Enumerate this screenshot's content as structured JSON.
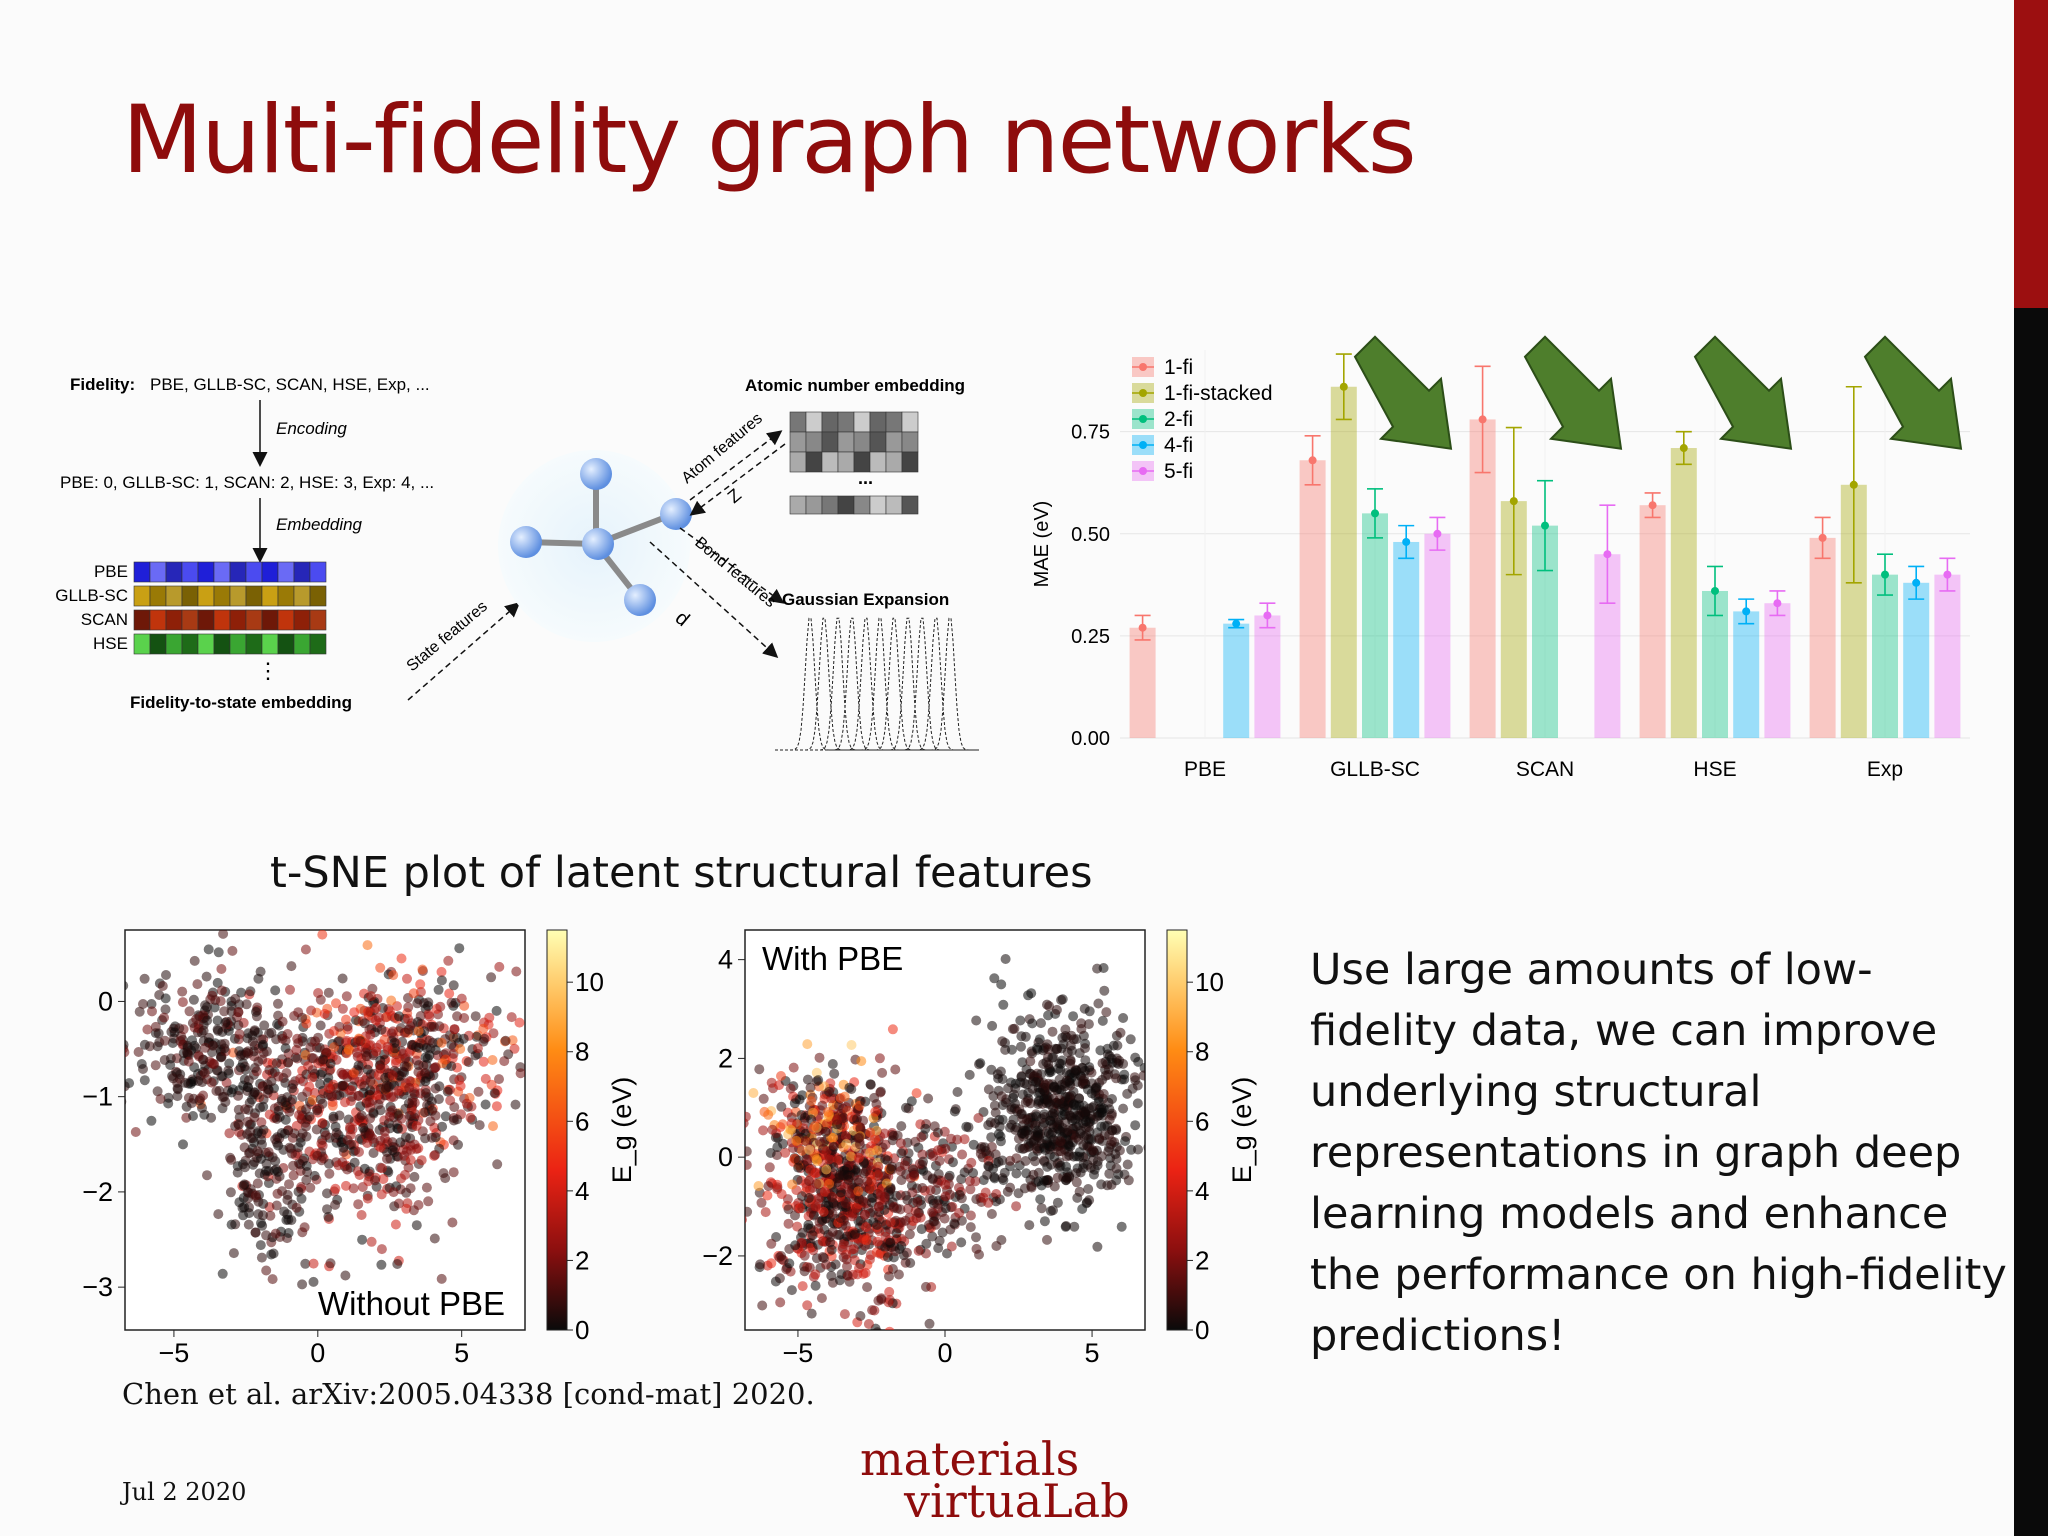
{
  "slide": {
    "title": "Multi-fidelity graph networks",
    "tsne_title": "t-SNE plot of latent structural features",
    "description": "Use large amounts of low-fidelity data, we can improve underlying structural representations in graph deep learning models and enhance the performance on high-fidelity predictions!",
    "citation": "Chen et al. arXiv:2005.04338 [cond-mat] 2020.",
    "date": "Jul 2 2020",
    "logo_line1": "materials",
    "logo_line2": "virtuaLab",
    "accent_color": "#8e0c0c"
  },
  "diagram": {
    "fidelity_label": "Fidelity:",
    "fidelity_list": "PBE, GLLB-SC, SCAN, HSE, Exp, ...",
    "encoding": "Encoding",
    "encoded": "PBE: 0, GLLB-SC: 1, SCAN: 2, HSE: 3, Exp: 4, ...",
    "embedding": "Embedding",
    "rows": [
      "PBE",
      "GLLB-SC",
      "SCAN",
      "HSE"
    ],
    "dots": "⋮",
    "fidelity_to_state": "Fidelity-to-state embedding",
    "state_features": "State features",
    "atom_features": "Atom features",
    "bond_features": "Bond features",
    "z": "Z",
    "d": "d",
    "atomic_embedding": "Atomic number embedding",
    "ellipsis": "...",
    "gaussian": "Gaussian Expansion"
  },
  "chart_data": [
    {
      "type": "bar",
      "ylabel": "MAE (eV)",
      "xlabel": "",
      "ylim": [
        0,
        0.95
      ],
      "yticks": [
        "0.00",
        "0.25",
        "0.50",
        "0.75"
      ],
      "categories": [
        "PBE",
        "GLLB-SC",
        "SCAN",
        "HSE",
        "Exp"
      ],
      "legend_position": "top-left",
      "series": [
        {
          "name": "1-fi",
          "color": "#f8766d",
          "values": [
            0.27,
            0.68,
            0.78,
            0.57,
            0.49
          ],
          "err": [
            0.03,
            0.06,
            0.13,
            0.03,
            0.05
          ]
        },
        {
          "name": "1-fi-stacked",
          "color": "#a3a500",
          "values": [
            null,
            0.86,
            0.58,
            0.71,
            0.62
          ],
          "err": [
            0,
            0.08,
            0.18,
            0.04,
            0.24
          ]
        },
        {
          "name": "2-fi",
          "color": "#00bf7d",
          "values": [
            null,
            0.55,
            0.52,
            0.36,
            0.4
          ],
          "err": [
            0,
            0.06,
            0.11,
            0.06,
            0.05
          ]
        },
        {
          "name": "4-fi",
          "color": "#00b0f6",
          "values": [
            0.28,
            0.48,
            null,
            0.31,
            0.38
          ],
          "err": [
            0.01,
            0.04,
            0,
            0.03,
            0.04
          ]
        },
        {
          "name": "5-fi",
          "color": "#e76bf3",
          "values": [
            0.3,
            0.5,
            0.45,
            0.33,
            0.4
          ],
          "err": [
            0.03,
            0.04,
            0.12,
            0.03,
            0.04
          ]
        }
      ]
    },
    {
      "type": "scatter",
      "label": "Without PBE",
      "xticks": [
        -5,
        0,
        5
      ],
      "yticks": [
        0,
        -1,
        -2,
        -3
      ],
      "xlim": [
        -6.7,
        7.2
      ],
      "ylim": [
        -3.45,
        0.75
      ],
      "colorbar_label": "E_g (eV)",
      "colorbar_ticks": [
        0,
        2,
        4,
        6,
        8,
        10
      ],
      "clusters": [
        {
          "cx": 2.5,
          "cy": -0.6,
          "sx": 2.3,
          "sy": 0.45,
          "n": 520,
          "emax": 7
        },
        {
          "cx": 1.3,
          "cy": -1.4,
          "sx": 1.8,
          "sy": 0.55,
          "n": 360,
          "emax": 4
        },
        {
          "cx": -3.6,
          "cy": -0.5,
          "sx": 1.4,
          "sy": 0.45,
          "n": 300,
          "emax": 2
        },
        {
          "cx": -1.8,
          "cy": -1.8,
          "sx": 0.8,
          "sy": 0.5,
          "n": 140,
          "emax": 1.5
        }
      ]
    },
    {
      "type": "scatter",
      "label": "With PBE",
      "xticks": [
        -5,
        0,
        5
      ],
      "yticks": [
        4,
        2,
        0,
        -2
      ],
      "xlim": [
        -6.8,
        6.8
      ],
      "ylim": [
        -3.5,
        4.6
      ],
      "colorbar_label": "E_g (eV)",
      "colorbar_ticks": [
        0,
        2,
        4,
        6,
        8,
        10
      ],
      "clusters": [
        {
          "cx": 4.0,
          "cy": 0.9,
          "sx": 1.3,
          "sy": 1.0,
          "n": 650,
          "emax": 0.8
        },
        {
          "cx": -3.4,
          "cy": -1.0,
          "sx": 1.3,
          "sy": 1.0,
          "n": 620,
          "emax": 5
        },
        {
          "cx": -4.0,
          "cy": 0.6,
          "sx": 1.2,
          "sy": 0.7,
          "n": 240,
          "emax": 10
        },
        {
          "cx": 0.0,
          "cy": -0.5,
          "sx": 1.2,
          "sy": 0.7,
          "n": 180,
          "emax": 3
        }
      ]
    }
  ]
}
